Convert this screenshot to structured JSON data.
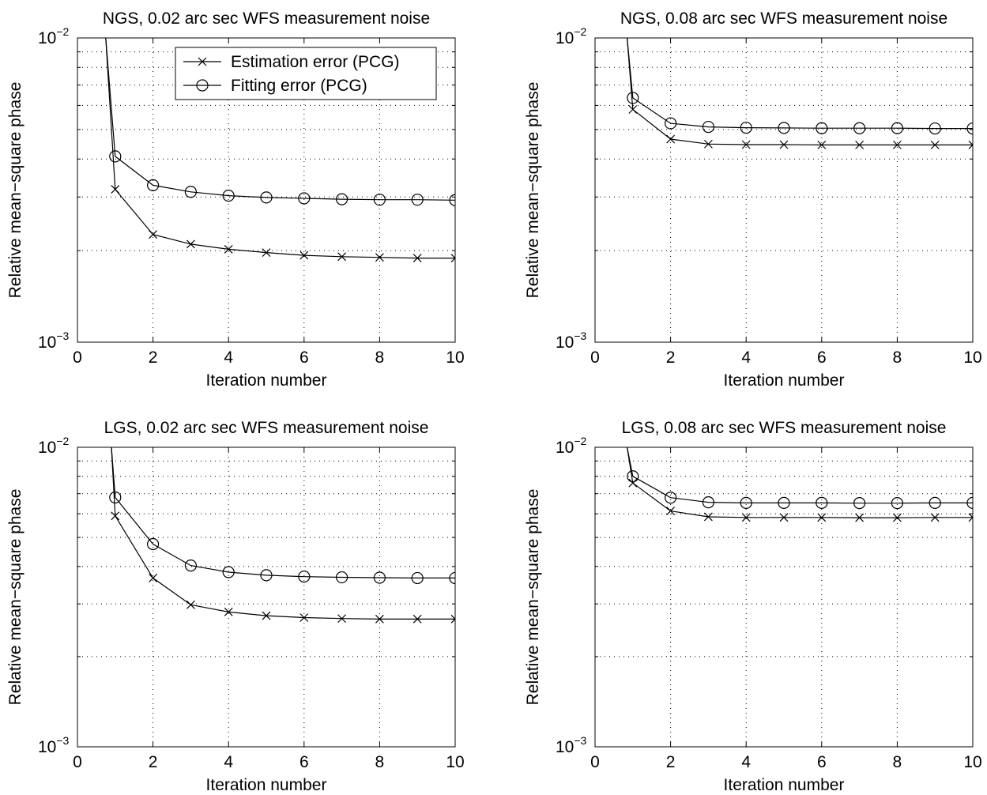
{
  "chart_data": [
    {
      "type": "line",
      "title": "NGS, 0.02 arc sec WFS measurement noise",
      "xlabel": "Iteration number",
      "ylabel": "Relative mean−square phase",
      "xlim": [
        0,
        10
      ],
      "ylim": [
        0.001,
        0.01
      ],
      "yscale": "log",
      "xticks": [
        0,
        2,
        4,
        6,
        8,
        10
      ],
      "xtick_labels": [
        "0",
        "2",
        "4",
        "6",
        "8",
        "10"
      ],
      "ytick_labels": [
        {
          "base": "10",
          "exp": "−3"
        },
        {
          "base": "10",
          "exp": "−2"
        }
      ],
      "grid": true,
      "legend": {
        "position": "top-right",
        "show": true
      },
      "series": [
        {
          "name": "Estimation error (PCG)",
          "marker": "x",
          "x": [
            0.75,
            1,
            2,
            3,
            4,
            5,
            6,
            7,
            8,
            9,
            10
          ],
          "y": [
            0.01,
            0.00318,
            0.00226,
            0.0021,
            0.00202,
            0.00197,
            0.00193,
            0.00191,
            0.0019,
            0.00189,
            0.00189
          ],
          "marker_from": 1
        },
        {
          "name": "Fitting error (PCG)",
          "marker": "o",
          "x": [
            0.75,
            1,
            2,
            3,
            4,
            5,
            6,
            7,
            8,
            9,
            10
          ],
          "y": [
            0.01,
            0.00408,
            0.00328,
            0.00312,
            0.00303,
            0.00299,
            0.00297,
            0.00295,
            0.00294,
            0.00294,
            0.00293
          ],
          "marker_from": 1
        }
      ]
    },
    {
      "type": "line",
      "title": "NGS, 0.08 arc sec WFS measurement noise",
      "xlabel": "Iteration number",
      "ylabel": "Relative mean−square phase",
      "xlim": [
        0,
        10
      ],
      "ylim": [
        0.001,
        0.01
      ],
      "yscale": "log",
      "xticks": [
        0,
        2,
        4,
        6,
        8,
        10
      ],
      "xtick_labels": [
        "0",
        "2",
        "4",
        "6",
        "8",
        "10"
      ],
      "ytick_labels": [
        {
          "base": "10",
          "exp": "−3"
        },
        {
          "base": "10",
          "exp": "−2"
        }
      ],
      "grid": true,
      "legend": {
        "show": false
      },
      "series": [
        {
          "name": "Estimation error (PCG)",
          "marker": "x",
          "x": [
            0.85,
            1,
            2,
            3,
            4,
            5,
            6,
            7,
            8,
            9,
            10
          ],
          "y": [
            0.01,
            0.00582,
            0.00465,
            0.00448,
            0.00446,
            0.00446,
            0.00445,
            0.00445,
            0.00445,
            0.00445,
            0.00445
          ],
          "marker_from": 1
        },
        {
          "name": "Fitting error (PCG)",
          "marker": "o",
          "x": [
            0.85,
            1,
            2,
            3,
            4,
            5,
            6,
            7,
            8,
            9,
            10
          ],
          "y": [
            0.01,
            0.00635,
            0.00524,
            0.0051,
            0.00507,
            0.00506,
            0.00505,
            0.00505,
            0.00505,
            0.00504,
            0.00504
          ],
          "marker_from": 1
        }
      ]
    },
    {
      "type": "line",
      "title": "LGS, 0.02 arc sec WFS measurement noise",
      "xlabel": "Iteration number",
      "ylabel": "Relative mean−square phase",
      "xlim": [
        0,
        10
      ],
      "ylim": [
        0.001,
        0.01
      ],
      "yscale": "log",
      "xticks": [
        0,
        2,
        4,
        6,
        8,
        10
      ],
      "xtick_labels": [
        "0",
        "2",
        "4",
        "6",
        "8",
        "10"
      ],
      "ytick_labels": [
        {
          "base": "10",
          "exp": "−3"
        },
        {
          "base": "10",
          "exp": "−2"
        }
      ],
      "grid": true,
      "legend": {
        "show": false
      },
      "series": [
        {
          "name": "Estimation error (PCG)",
          "marker": "x",
          "x": [
            0.9,
            1,
            2,
            3,
            4,
            5,
            6,
            7,
            8,
            9,
            10
          ],
          "y": [
            0.01,
            0.0059,
            0.00366,
            0.00298,
            0.00282,
            0.00274,
            0.0027,
            0.00268,
            0.00267,
            0.00267,
            0.00267
          ],
          "marker_from": 1
        },
        {
          "name": "Fitting error (PCG)",
          "marker": "o",
          "x": [
            0.9,
            1,
            2,
            3,
            4,
            5,
            6,
            7,
            8,
            9,
            10
          ],
          "y": [
            0.01,
            0.0068,
            0.00475,
            0.00403,
            0.00383,
            0.00374,
            0.0037,
            0.00368,
            0.00367,
            0.00366,
            0.00366
          ],
          "marker_from": 1
        }
      ]
    },
    {
      "type": "line",
      "title": "LGS, 0.08 arc sec WFS measurement noise",
      "xlabel": "Iteration number",
      "ylabel": "Relative mean−square phase",
      "xlim": [
        0,
        10
      ],
      "ylim": [
        0.001,
        0.01
      ],
      "yscale": "log",
      "xticks": [
        0,
        2,
        4,
        6,
        8,
        10
      ],
      "xtick_labels": [
        "0",
        "2",
        "4",
        "6",
        "8",
        "10"
      ],
      "ytick_labels": [
        {
          "base": "10",
          "exp": "−3"
        },
        {
          "base": "10",
          "exp": "−2"
        }
      ],
      "grid": true,
      "legend": {
        "show": false
      },
      "series": [
        {
          "name": "Estimation error (PCG)",
          "marker": "x",
          "x": [
            0.85,
            1,
            2,
            3,
            4,
            5,
            6,
            7,
            8,
            9,
            10
          ],
          "y": [
            0.01,
            0.0076,
            0.00613,
            0.00586,
            0.00583,
            0.00583,
            0.00583,
            0.00582,
            0.00582,
            0.00583,
            0.00583
          ],
          "marker_from": 1
        },
        {
          "name": "Fitting error (PCG)",
          "marker": "o",
          "x": [
            0.85,
            1,
            2,
            3,
            4,
            5,
            6,
            7,
            8,
            9,
            10
          ],
          "y": [
            0.01,
            0.008,
            0.00679,
            0.00655,
            0.00652,
            0.00652,
            0.00652,
            0.00651,
            0.00651,
            0.00652,
            0.00652
          ],
          "marker_from": 1
        }
      ]
    }
  ]
}
